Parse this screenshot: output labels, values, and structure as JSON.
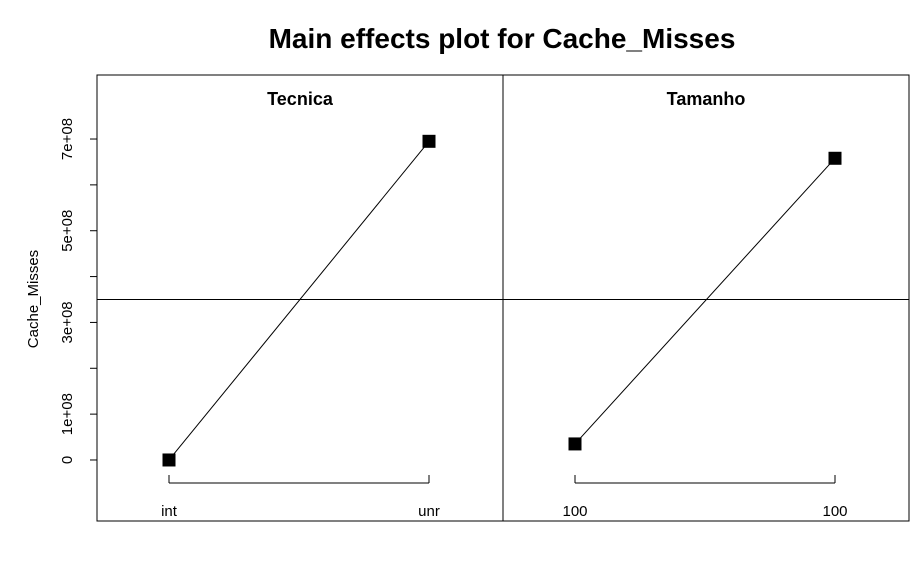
{
  "chart_data": {
    "type": "line",
    "title": "Main effects plot for Cache_Misses",
    "ylabel": "Cache_Misses",
    "ylim": [
      -120000000,
      820000000
    ],
    "y_tick_labels": [
      "0",
      "1e+08",
      "3e+08",
      "5e+08",
      "7e+08"
    ],
    "y_tick_values": [
      0,
      100000000,
      200000000,
      300000000,
      400000000,
      500000000,
      600000000,
      700000000
    ],
    "y_labeled_values": [
      0,
      100000000,
      300000000,
      500000000,
      700000000
    ],
    "grand_mean": 350000000,
    "panels": [
      {
        "name": "Tecnica",
        "categories": [
          "int",
          "unr"
        ],
        "values": [
          0,
          695000000
        ]
      },
      {
        "name": "Tamanho",
        "categories": [
          "100",
          "100"
        ],
        "values": [
          35000000,
          658000000
        ]
      }
    ]
  }
}
